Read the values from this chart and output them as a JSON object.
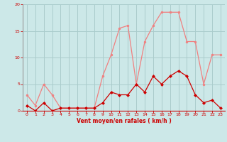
{
  "x": [
    0,
    1,
    2,
    3,
    4,
    5,
    6,
    7,
    8,
    9,
    10,
    11,
    12,
    13,
    14,
    15,
    16,
    17,
    18,
    19,
    20,
    21,
    22,
    23
  ],
  "y_rafales": [
    3,
    1,
    5,
    3,
    0.5,
    0.5,
    0.5,
    0.5,
    0.5,
    6.5,
    10.5,
    15.5,
    16,
    5,
    13,
    16,
    18.5,
    18.5,
    18.5,
    13,
    13,
    5,
    10.5,
    10.5
  ],
  "y_moyen": [
    1,
    0,
    1.5,
    0,
    0.5,
    0.5,
    0.5,
    0.5,
    0.5,
    1.5,
    3.5,
    3,
    3,
    5,
    3.5,
    6.5,
    5,
    6.5,
    7.5,
    6.5,
    3,
    1.5,
    2,
    0.5
  ],
  "color_rafales": "#f08080",
  "color_moyen": "#cc0000",
  "bg_color": "#cce8e8",
  "grid_color": "#aacccc",
  "xlabel": "Vent moyen/en rafales ( km/h )",
  "xlabel_color": "#cc0000",
  "tick_color": "#cc0000",
  "ylim": [
    0,
    20
  ],
  "xlim": [
    -0.5,
    23.5
  ],
  "yticks": [
    0,
    5,
    10,
    15,
    20
  ],
  "xticks": [
    0,
    1,
    2,
    3,
    4,
    5,
    6,
    7,
    8,
    9,
    10,
    11,
    12,
    13,
    14,
    15,
    16,
    17,
    18,
    19,
    20,
    21,
    22,
    23
  ]
}
